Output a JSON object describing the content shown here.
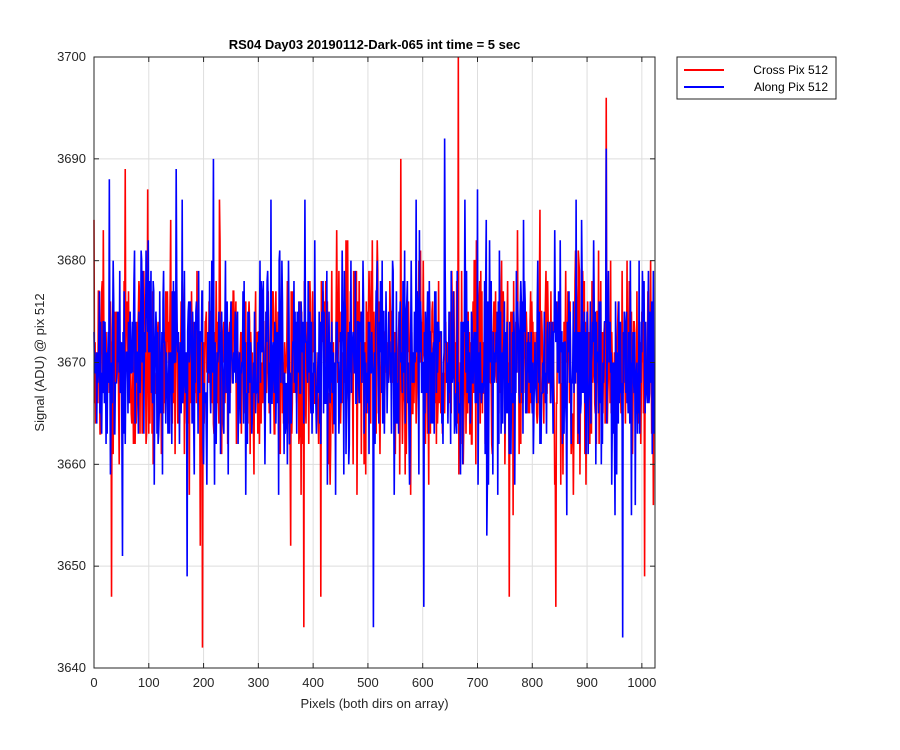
{
  "chart_data": {
    "type": "line",
    "title": "RS04 Day03 20190112-Dark-065 int time = 5 sec",
    "xlabel": "Pixels (both dirs on array)",
    "ylabel": "Signal (ADU) @ pix 512",
    "xlim": [
      0,
      1024
    ],
    "ylim": [
      3640,
      3700
    ],
    "xticks": [
      0,
      100,
      200,
      300,
      400,
      500,
      600,
      700,
      800,
      900,
      1000
    ],
    "yticks": [
      3640,
      3650,
      3660,
      3670,
      3680,
      3690,
      3700
    ],
    "grid": true,
    "legend_position": "outside-top-right",
    "series": [
      {
        "name": "Cross Pix 512",
        "color": "#ff0000",
        "n_points": 1024,
        "mean": 3670,
        "peaks": [
          [
            17,
            3683
          ],
          [
            32,
            3647
          ],
          [
            57,
            3689
          ],
          [
            98,
            3687
          ],
          [
            140,
            3684
          ],
          [
            198,
            3642
          ],
          [
            229,
            3686
          ],
          [
            383,
            3644
          ],
          [
            414,
            3647
          ],
          [
            460,
            3682
          ],
          [
            560,
            3690
          ],
          [
            665,
            3700
          ],
          [
            758,
            3647
          ],
          [
            843,
            3646
          ],
          [
            935,
            3696
          ],
          [
            1005,
            3649
          ]
        ]
      },
      {
        "name": "Along Pix 512",
        "color": "#0000ff",
        "n_points": 1024,
        "mean": 3670,
        "peaks": [
          [
            28,
            3688
          ],
          [
            52,
            3651
          ],
          [
            150,
            3689
          ],
          [
            170,
            3649
          ],
          [
            218,
            3690
          ],
          [
            385,
            3686
          ],
          [
            510,
            3644
          ],
          [
            588,
            3686
          ],
          [
            602,
            3646
          ],
          [
            640,
            3692
          ],
          [
            700,
            3687
          ],
          [
            880,
            3686
          ],
          [
            935,
            3691
          ],
          [
            965,
            3643
          ]
        ]
      }
    ]
  }
}
